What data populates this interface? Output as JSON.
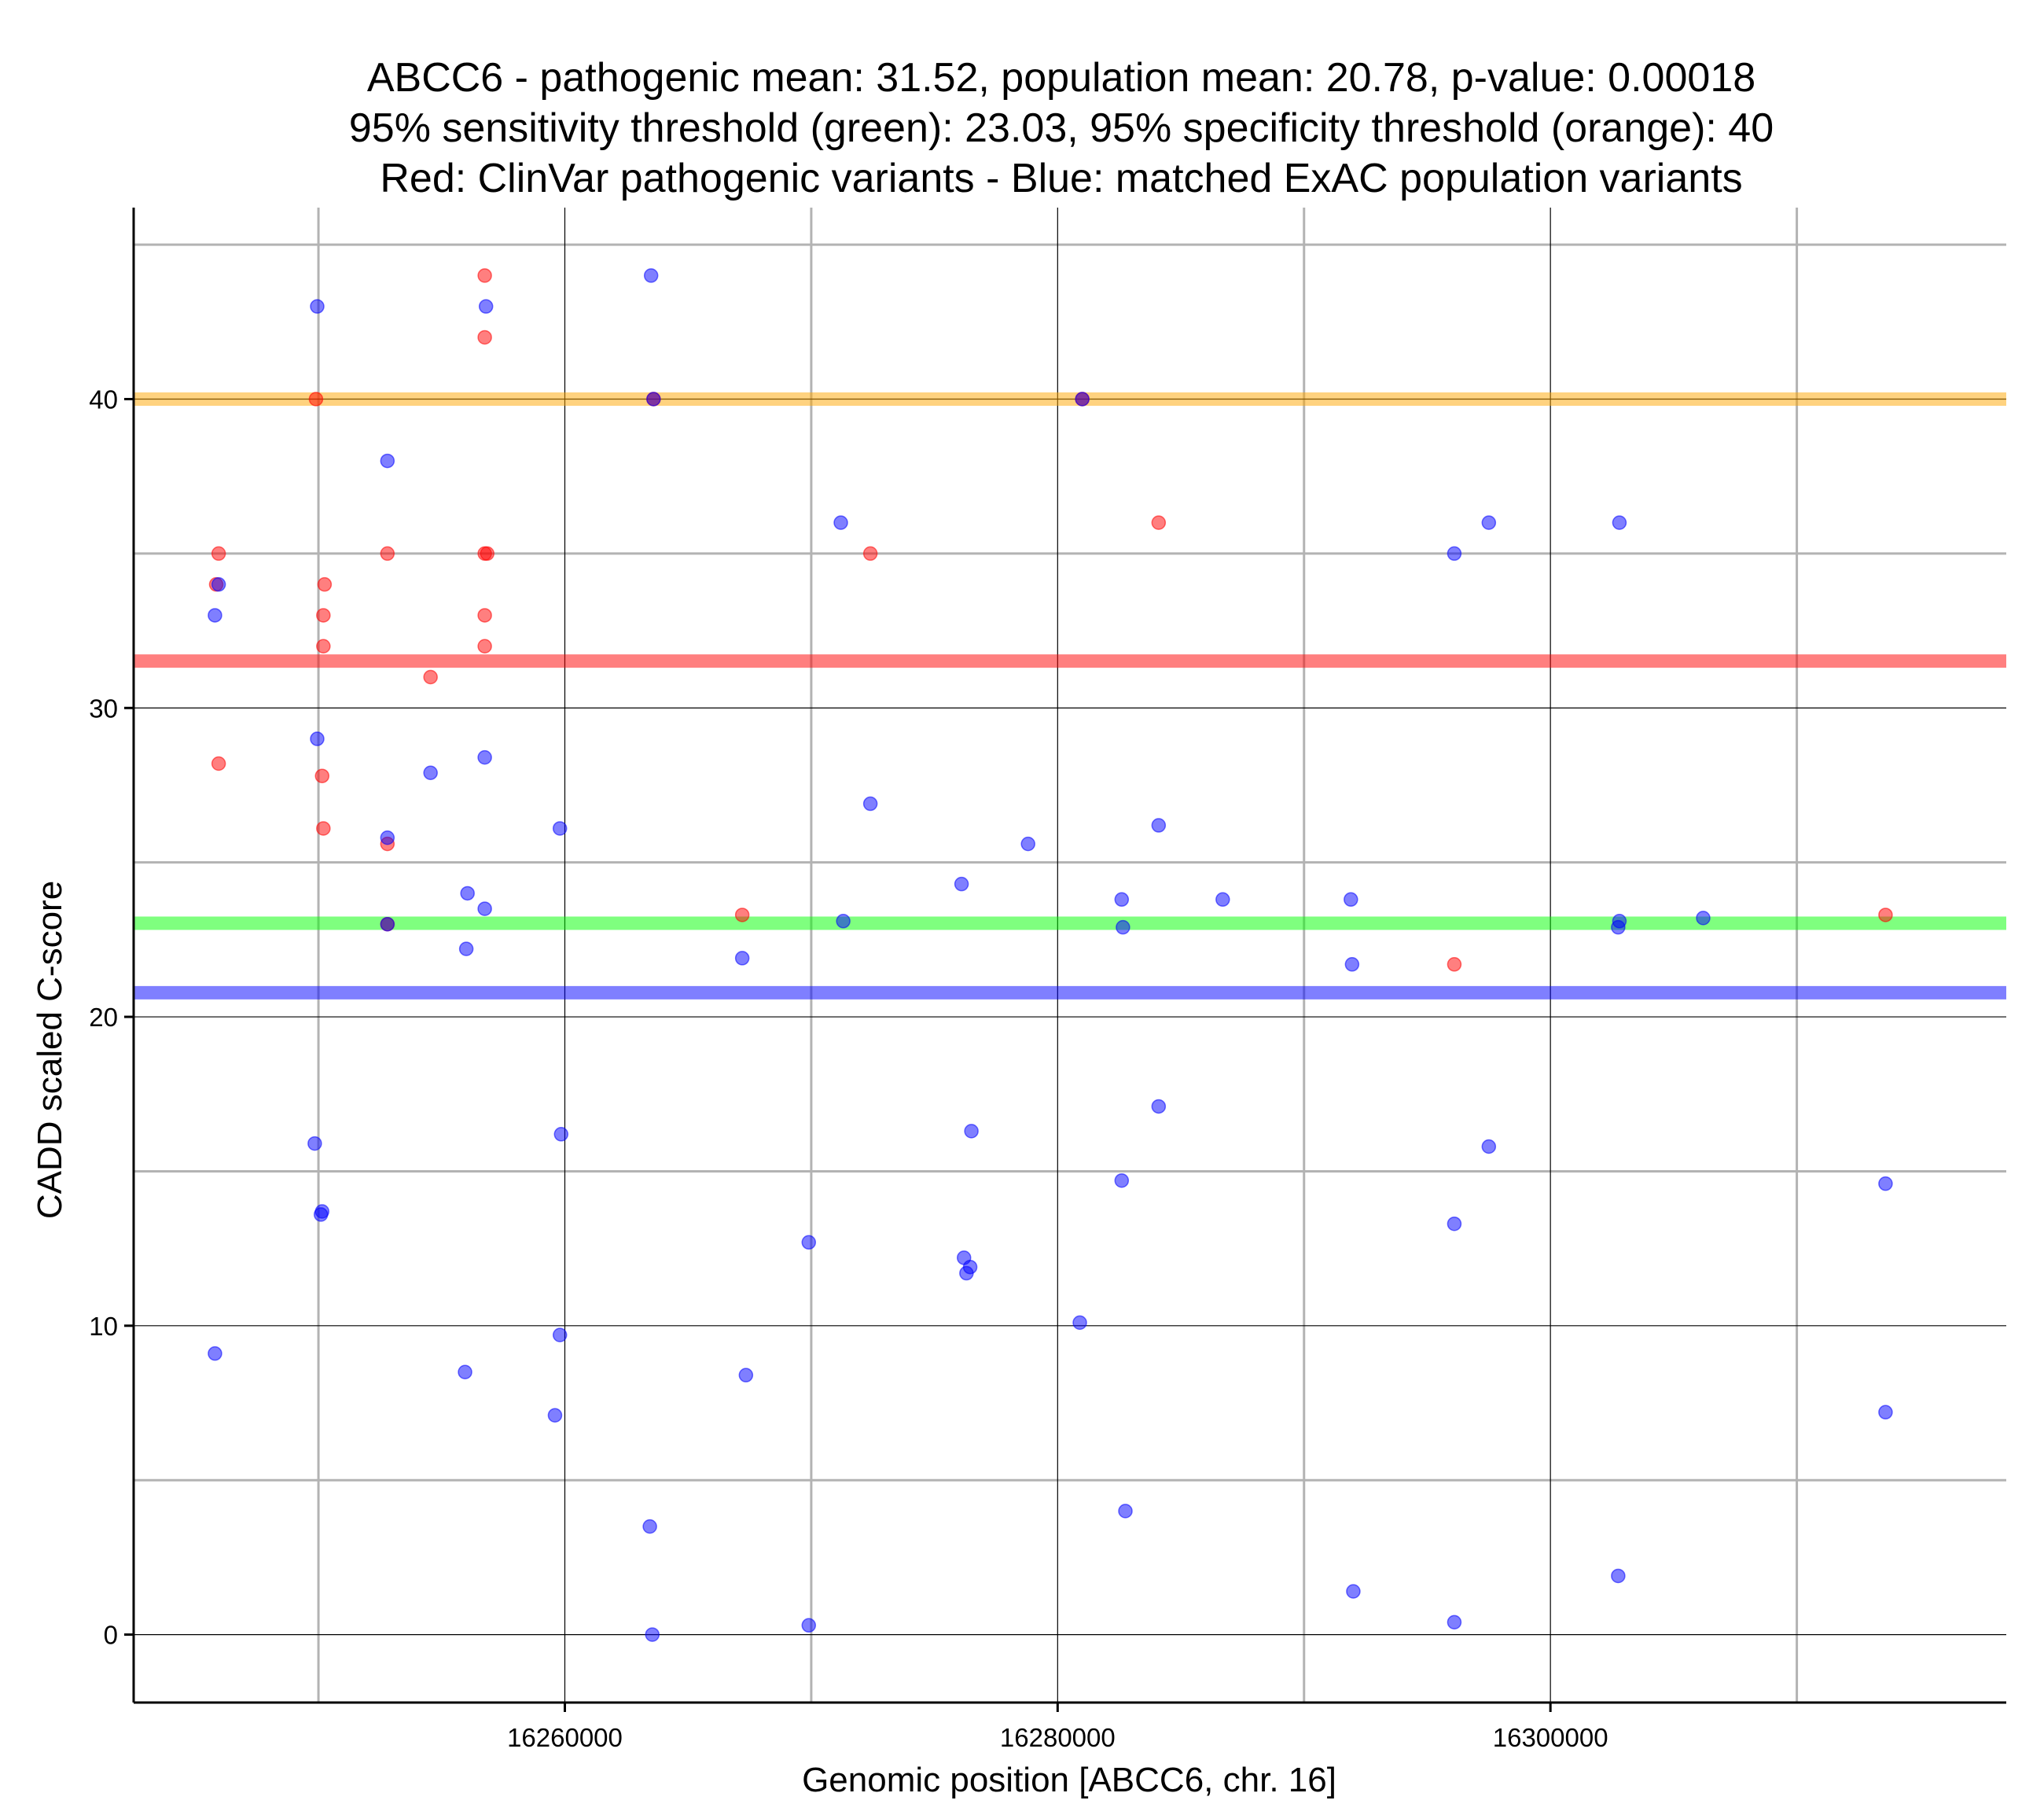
{
  "chart_data": {
    "type": "scatter",
    "title_lines": [
      "ABCC6 - pathogenic mean: 31.52, population mean: 20.78, p-value: 0.00018",
      "95% sensitivity threshold (green): 23.03, 95% specificity threshold (orange): 40",
      "Red: ClinVar pathogenic variants - Blue: matched ExAC population variants"
    ],
    "xlabel": "Genomic position [ABCC6, chr. 16]",
    "ylabel": "CADD scaled C-score",
    "xlim": [
      16242500,
      16318500
    ],
    "ylim": [
      -2.2,
      46.2
    ],
    "x_ticks": [
      16260000,
      16280000,
      16300000
    ],
    "x_tick_labels": [
      "16260000",
      "16280000",
      "16300000"
    ],
    "x_minor_gridlines": [
      16250000,
      16270000,
      16290000,
      16310000
    ],
    "y_ticks": [
      0,
      10,
      20,
      30,
      40
    ],
    "y_tick_labels": [
      "0",
      "10",
      "20",
      "30",
      "40"
    ],
    "y_minor_gridlines": [
      5,
      15,
      25,
      35,
      45
    ],
    "grid": true,
    "reference_lines": [
      {
        "name": "specificity threshold (orange)",
        "y": 40,
        "color": "#ffa500"
      },
      {
        "name": "pathogenic mean (red)",
        "y": 31.52,
        "color": "#ff0000"
      },
      {
        "name": "sensitivity threshold (green)",
        "y": 23.03,
        "color": "#00ff00"
      },
      {
        "name": "population mean (blue)",
        "y": 20.78,
        "color": "#0000ff"
      }
    ],
    "series": [
      {
        "name": "ClinVar pathogenic variants",
        "color": "#ff0000",
        "points": [
          [
            16245950,
            35
          ],
          [
            16245850,
            34
          ],
          [
            16245950,
            28.2
          ],
          [
            16249900,
            40
          ],
          [
            16250250,
            34
          ],
          [
            16250200,
            33
          ],
          [
            16250200,
            32
          ],
          [
            16250150,
            27.8
          ],
          [
            16250200,
            26.1
          ],
          [
            16252800,
            35
          ],
          [
            16252800,
            25.6
          ],
          [
            16252800,
            23
          ],
          [
            16254550,
            31
          ],
          [
            16256750,
            44
          ],
          [
            16256750,
            42
          ],
          [
            16256750,
            35
          ],
          [
            16256850,
            35
          ],
          [
            16256750,
            33
          ],
          [
            16256750,
            32
          ],
          [
            16263600,
            40
          ],
          [
            16267200,
            23.3
          ],
          [
            16272400,
            35
          ],
          [
            16281000,
            40
          ],
          [
            16284100,
            36
          ],
          [
            16296100,
            21.7
          ],
          [
            16313600,
            23.3
          ]
        ]
      },
      {
        "name": "matched ExAC population variants",
        "color": "#0000ff",
        "points": [
          [
            16245950,
            34
          ],
          [
            16245800,
            33
          ],
          [
            16245800,
            9.1
          ],
          [
            16249950,
            43
          ],
          [
            16249950,
            29
          ],
          [
            16249850,
            15.9
          ],
          [
            16250150,
            13.7
          ],
          [
            16250100,
            13.6
          ],
          [
            16252800,
            38
          ],
          [
            16252800,
            25.8
          ],
          [
            16252800,
            23
          ],
          [
            16254550,
            27.9
          ],
          [
            16256050,
            24
          ],
          [
            16256000,
            22.2
          ],
          [
            16255950,
            8.5
          ],
          [
            16256800,
            43
          ],
          [
            16256750,
            28.4
          ],
          [
            16256750,
            23.5
          ],
          [
            16259800,
            26.1
          ],
          [
            16259850,
            16.2
          ],
          [
            16259800,
            9.7
          ],
          [
            16259600,
            7.1
          ],
          [
            16263500,
            44
          ],
          [
            16263600,
            40
          ],
          [
            16263450,
            3.5
          ],
          [
            16263550,
            0
          ],
          [
            16267200,
            21.9
          ],
          [
            16267350,
            8.4
          ],
          [
            16269900,
            12.7
          ],
          [
            16269900,
            0.3
          ],
          [
            16271200,
            36
          ],
          [
            16271300,
            23.1
          ],
          [
            16272400,
            26.9
          ],
          [
            16276100,
            24.3
          ],
          [
            16276200,
            12.2
          ],
          [
            16276300,
            11.7
          ],
          [
            16276450,
            11.9
          ],
          [
            16276500,
            16.3
          ],
          [
            16278800,
            25.6
          ],
          [
            16281000,
            40
          ],
          [
            16280900,
            10.1
          ],
          [
            16282600,
            23.8
          ],
          [
            16282650,
            22.9
          ],
          [
            16282600,
            14.7
          ],
          [
            16282750,
            4
          ],
          [
            16284100,
            26.2
          ],
          [
            16284100,
            17.1
          ],
          [
            16286700,
            23.8
          ],
          [
            16291900,
            23.8
          ],
          [
            16291950,
            21.7
          ],
          [
            16292000,
            1.4
          ],
          [
            16296100,
            35
          ],
          [
            16296100,
            13.3
          ],
          [
            16296100,
            0.4
          ],
          [
            16297500,
            36
          ],
          [
            16297500,
            15.8
          ],
          [
            16302800,
            36
          ],
          [
            16302800,
            23.1
          ],
          [
            16302750,
            22.9
          ],
          [
            16302750,
            1.9
          ],
          [
            16306200,
            23.2
          ],
          [
            16313600,
            14.6
          ],
          [
            16313600,
            7.2
          ]
        ]
      }
    ]
  }
}
